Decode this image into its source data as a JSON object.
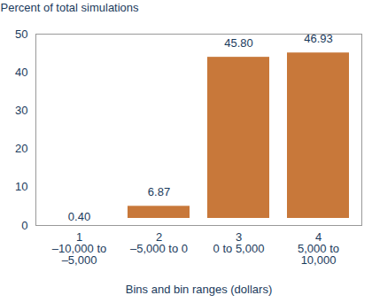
{
  "chart_data": {
    "type": "bar",
    "y_label": "Percent of total simulations",
    "x_label": "Bins and bin ranges (dollars)",
    "categories": [
      "1\n–10,000 to\n–5,000",
      "2\n–5,000 to 0",
      "3\n0 to 5,000",
      "4\n5,000 to\n10,000"
    ],
    "values": [
      0.4,
      6.87,
      45.8,
      46.93
    ],
    "value_labels": [
      "0.40",
      "6.87",
      "45.80",
      "46.93"
    ],
    "color": "#c8783a",
    "ylim": [
      0,
      50
    ],
    "yticks": [
      0,
      10,
      20,
      30,
      40,
      50
    ],
    "grid": false,
    "data_labels": true
  }
}
